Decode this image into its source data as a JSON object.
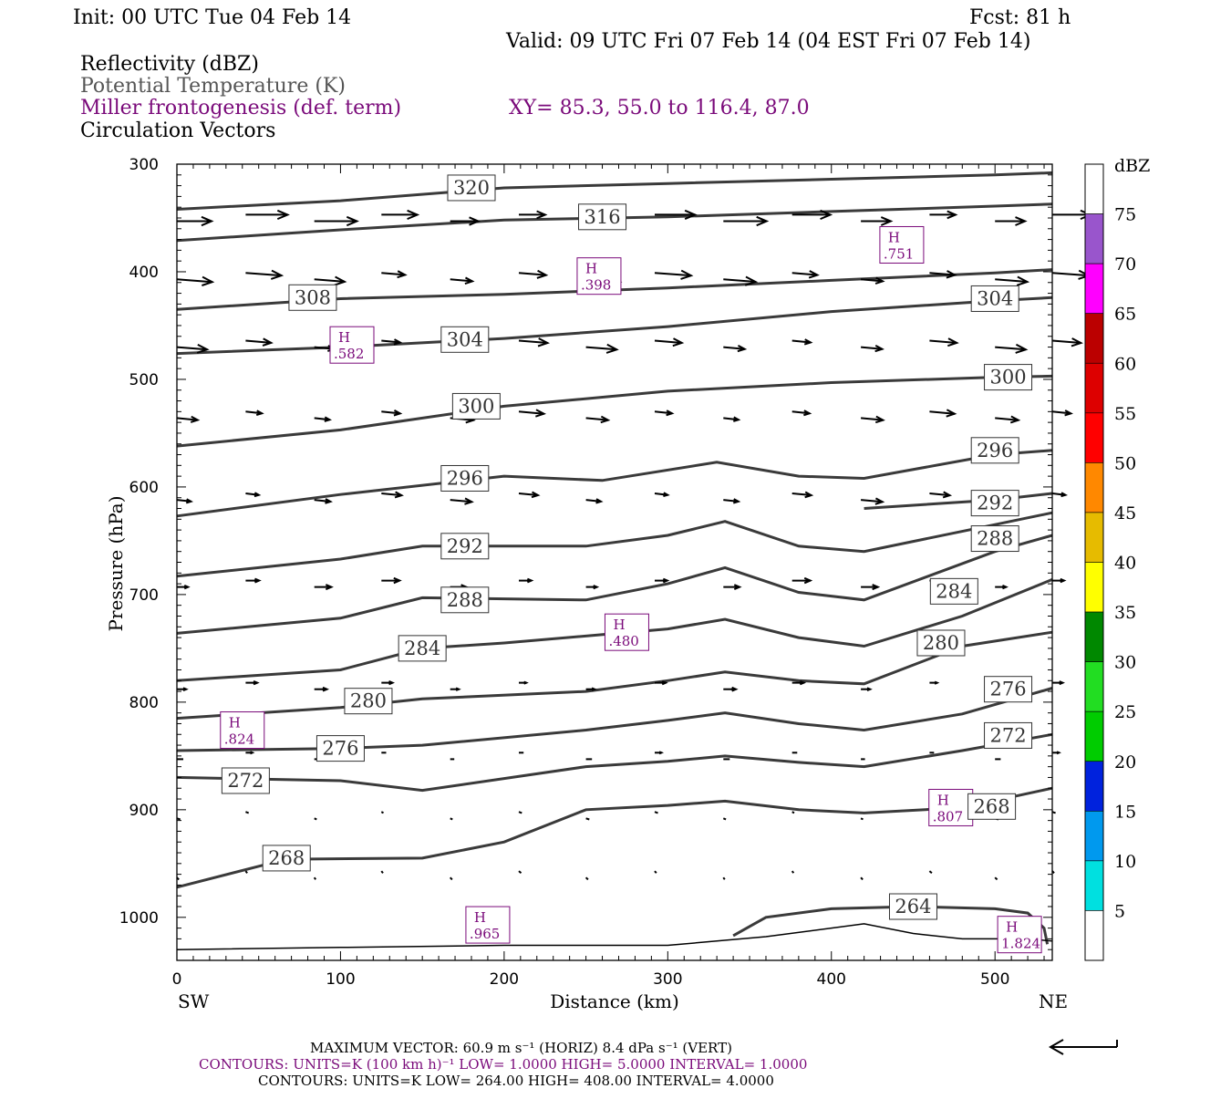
{
  "header": {
    "init": "Init: 00 UTC Tue 04 Feb 14",
    "fcst": "Fcst:   81 h",
    "valid": "Valid: 09 UTC Fri 07 Feb 14 (04 EST Fri 07 Feb 14)",
    "fields": {
      "reflectivity": "Reflectivity (dBZ)",
      "theta": "Potential Temperature (K)",
      "frontogenesis": "Miller frontogenesis (def. term)",
      "xy": "XY=  85.3, 55.0 to 116.4, 87.0",
      "vectors": "Circulation Vectors"
    }
  },
  "footer": {
    "max_vector": "MAXIMUM VECTOR:  60.9 m s⁻¹ (HORIZ)          8.4 dPa s⁻¹ (VERT)",
    "contours_fronto": "CONTOURS:  UNITS=K (100 km h)⁻¹  LOW=   1.0000          HIGH=   5.0000          INTERVAL=    1.0000",
    "contours_theta": "CONTOURS:  UNITS=K  LOW=   264.00          HIGH=   408.00          INTERVAL=     4.0000"
  },
  "colors": {
    "theta_contour": "#3a3a3a",
    "fronto": "#7a0a7a",
    "vector": "#000000"
  },
  "colorbar": {
    "unit": "dBZ",
    "labels": [
      "5",
      "10",
      "15",
      "20",
      "25",
      "30",
      "35",
      "40",
      "45",
      "50",
      "55",
      "60",
      "65",
      "70",
      "75"
    ],
    "colors": [
      "#ffffff",
      "#00e0e0",
      "#0099ee",
      "#0022dd",
      "#00cc00",
      "#22dd22",
      "#008800",
      "#ffff00",
      "#e6bb00",
      "#ff8800",
      "#ff0000",
      "#dd0000",
      "#bb0000",
      "#ff00ff",
      "#9955cc",
      "#ffffff"
    ]
  },
  "chart_data": {
    "type": "contour",
    "xlabel": "Distance (km)",
    "ylabel": "Pressure (hPa)",
    "xlim": [
      0,
      535
    ],
    "ylim": [
      1040,
      300
    ],
    "x_ticks": [
      0,
      100,
      200,
      300,
      400,
      500
    ],
    "y_ticks": [
      300,
      400,
      500,
      600,
      700,
      800,
      900,
      1000
    ],
    "x_end_labels": {
      "left": "SW",
      "right": "NE"
    },
    "theta_contours": [
      {
        "label": "320",
        "label_at": [
          180,
          322
        ],
        "points": [
          [
            0,
            342
          ],
          [
            100,
            334
          ],
          [
            200,
            322
          ],
          [
            300,
            318
          ],
          [
            400,
            314
          ],
          [
            500,
            310
          ],
          [
            535,
            308
          ]
        ]
      },
      {
        "label": "316",
        "label_at": [
          260,
          349
        ],
        "points": [
          [
            0,
            371
          ],
          [
            100,
            361
          ],
          [
            200,
            352
          ],
          [
            300,
            349
          ],
          [
            400,
            344
          ],
          [
            500,
            339
          ],
          [
            535,
            337
          ]
        ]
      },
      {
        "label": "308",
        "label_at": [
          83,
          424
        ],
        "points": [
          [
            0,
            435
          ],
          [
            100,
            425
          ],
          [
            200,
            421
          ],
          [
            300,
            415
          ],
          [
            400,
            408
          ],
          [
            500,
            401
          ],
          [
            535,
            398
          ]
        ]
      },
      {
        "label": "304",
        "label_at": [
          500,
          425
        ],
        "points": []
      },
      {
        "label": "304",
        "label_at": [
          176,
          463
        ],
        "points": [
          [
            0,
            476
          ],
          [
            100,
            470
          ],
          [
            200,
            462
          ],
          [
            300,
            451
          ],
          [
            400,
            437
          ],
          [
            500,
            427
          ],
          [
            535,
            424
          ]
        ]
      },
      {
        "label": "300",
        "label_at": [
          183,
          525
        ],
        "points": [
          [
            0,
            562
          ],
          [
            100,
            547
          ],
          [
            200,
            525
          ],
          [
            300,
            511
          ],
          [
            400,
            503
          ],
          [
            500,
            498
          ],
          [
            535,
            497
          ]
        ]
      },
      {
        "label": "300",
        "label_at": [
          508,
          498
        ],
        "points": []
      },
      {
        "label": "296",
        "label_at": [
          176,
          592
        ],
        "points": [
          [
            0,
            627
          ],
          [
            100,
            607
          ],
          [
            200,
            590
          ],
          [
            260,
            594
          ],
          [
            330,
            577
          ],
          [
            380,
            590
          ],
          [
            420,
            592
          ],
          [
            500,
            570
          ],
          [
            535,
            566
          ]
        ]
      },
      {
        "label": "296",
        "label_at": [
          500,
          566
        ],
        "points": []
      },
      {
        "label": "292",
        "label_at": [
          176,
          655
        ],
        "points": [
          [
            0,
            683
          ],
          [
            100,
            667
          ],
          [
            150,
            655
          ],
          [
            250,
            655
          ],
          [
            300,
            645
          ],
          [
            335,
            632
          ],
          [
            380,
            655
          ],
          [
            420,
            660
          ],
          [
            500,
            635
          ],
          [
            535,
            624
          ]
        ]
      },
      {
        "label": "292",
        "label_at": [
          500,
          615
        ],
        "points": [
          [
            420,
            620
          ],
          [
            500,
            612
          ],
          [
            535,
            606
          ]
        ]
      },
      {
        "label": "288",
        "label_at": [
          176,
          705
        ],
        "points": [
          [
            0,
            736
          ],
          [
            100,
            722
          ],
          [
            150,
            703
          ],
          [
            250,
            705
          ],
          [
            300,
            690
          ],
          [
            335,
            675
          ],
          [
            380,
            698
          ],
          [
            420,
            705
          ],
          [
            500,
            660
          ],
          [
            535,
            645
          ]
        ]
      },
      {
        "label": "288",
        "label_at": [
          500,
          648
        ],
        "points": []
      },
      {
        "label": "284",
        "label_at": [
          150,
          750
        ],
        "points": [
          [
            0,
            780
          ],
          [
            100,
            770
          ],
          [
            150,
            750
          ],
          [
            200,
            745
          ],
          [
            300,
            732
          ],
          [
            335,
            723
          ],
          [
            380,
            740
          ],
          [
            420,
            748
          ],
          [
            480,
            720
          ],
          [
            535,
            686
          ]
        ]
      },
      {
        "label": "284",
        "label_at": [
          475,
          697
        ],
        "points": []
      },
      {
        "label": "280",
        "label_at": [
          117,
          799
        ],
        "points": [
          [
            0,
            815
          ],
          [
            100,
            805
          ],
          [
            150,
            797
          ],
          [
            250,
            790
          ],
          [
            300,
            780
          ],
          [
            335,
            772
          ],
          [
            380,
            780
          ],
          [
            420,
            783
          ],
          [
            480,
            748
          ],
          [
            535,
            735
          ]
        ]
      },
      {
        "label": "280",
        "label_at": [
          467,
          745
        ],
        "points": []
      },
      {
        "label": "276",
        "label_at": [
          100,
          843
        ],
        "points": [
          [
            0,
            845
          ],
          [
            100,
            843
          ],
          [
            150,
            840
          ],
          [
            250,
            826
          ],
          [
            300,
            817
          ],
          [
            335,
            810
          ],
          [
            380,
            820
          ],
          [
            420,
            826
          ],
          [
            480,
            811
          ],
          [
            535,
            787
          ]
        ]
      },
      {
        "label": "276",
        "label_at": [
          508,
          788
        ],
        "points": []
      },
      {
        "label": "272",
        "label_at": [
          42,
          873
        ],
        "points": [
          [
            0,
            870
          ],
          [
            100,
            873
          ],
          [
            150,
            882
          ],
          [
            250,
            860
          ],
          [
            300,
            855
          ],
          [
            335,
            850
          ],
          [
            380,
            856
          ],
          [
            420,
            860
          ],
          [
            480,
            845
          ],
          [
            535,
            830
          ]
        ]
      },
      {
        "label": "272",
        "label_at": [
          508,
          831
        ],
        "points": []
      },
      {
        "label": "268",
        "label_at": [
          67,
          945
        ],
        "points": [
          [
            0,
            972
          ],
          [
            67,
            946
          ],
          [
            150,
            945
          ],
          [
            200,
            930
          ],
          [
            250,
            900
          ],
          [
            300,
            896
          ],
          [
            335,
            892
          ],
          [
            380,
            900
          ],
          [
            420,
            903
          ],
          [
            480,
            898
          ],
          [
            535,
            880
          ]
        ]
      },
      {
        "label": "268",
        "label_at": [
          498,
          897
        ],
        "points": []
      },
      {
        "label": "264",
        "label_at": [
          450,
          990
        ],
        "points": [
          [
            340,
            1017
          ],
          [
            360,
            1000
          ],
          [
            400,
            992
          ],
          [
            450,
            990
          ],
          [
            500,
            992
          ],
          [
            520,
            996
          ],
          [
            530,
            1010
          ],
          [
            532,
            1025
          ]
        ]
      }
    ],
    "fronto_maxima": [
      {
        "label": "H",
        "value": ".751",
        "at": [
          443,
          375
        ]
      },
      {
        "label": "H",
        "value": ".398",
        "at": [
          258,
          404
        ]
      },
      {
        "label": "H",
        "value": ".582",
        "at": [
          107,
          468
        ]
      },
      {
        "label": "H",
        "value": ".480",
        "at": [
          275,
          735
        ]
      },
      {
        "label": "H",
        "value": ".824",
        "at": [
          40,
          826
        ]
      },
      {
        "label": "H",
        "value": ".807",
        "at": [
          473,
          898
        ]
      },
      {
        "label": "H",
        "value": ".965",
        "at": [
          190,
          1007
        ]
      },
      {
        "label": "H",
        "value": "1.824",
        "at": [
          515,
          1016
        ]
      }
    ],
    "vector_rows": [
      {
        "p": 350,
        "dx": 38,
        "dp": 0
      },
      {
        "p": 404,
        "dx": 32,
        "dp": 1
      },
      {
        "p": 467,
        "dx": 27,
        "dp": 1
      },
      {
        "p": 533,
        "dx": 22,
        "dp": 1
      },
      {
        "p": 609,
        "dx": 19,
        "dp": 1
      },
      {
        "p": 690,
        "dx": 16,
        "dp": 0
      },
      {
        "p": 785,
        "dx": 11,
        "dp": 0
      },
      {
        "p": 850,
        "dx": 6,
        "dp": 0
      },
      {
        "p": 905,
        "dx": 3,
        "dp": 1
      },
      {
        "p": 960,
        "dx": 2,
        "dp": 2
      }
    ],
    "vector_x": [
      0,
      42,
      84,
      125,
      167,
      209,
      250,
      292,
      334,
      376,
      418,
      460,
      500,
      535
    ],
    "terrain": [
      [
        0,
        1030
      ],
      [
        100,
        1028
      ],
      [
        200,
        1026
      ],
      [
        300,
        1026
      ],
      [
        330,
        1022
      ],
      [
        360,
        1018
      ],
      [
        400,
        1010
      ],
      [
        420,
        1006
      ],
      [
        450,
        1015
      ],
      [
        480,
        1020
      ],
      [
        520,
        1020
      ],
      [
        535,
        1022
      ]
    ]
  }
}
